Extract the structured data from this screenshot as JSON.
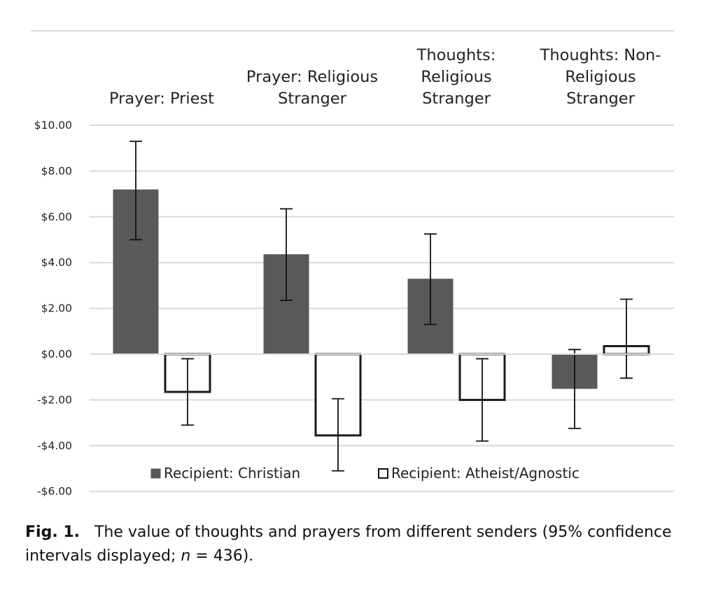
{
  "chart_data": {
    "type": "bar",
    "categories": [
      "Prayer: Priest",
      "Prayer: Religious Stranger",
      "Thoughts: Religious Stranger",
      "Thoughts: Non-Religious Stranger"
    ],
    "category_lines": [
      [
        "Prayer: Priest"
      ],
      [
        "Prayer: Religious",
        "Stranger"
      ],
      [
        "Thoughts:",
        "Religious",
        "Stranger"
      ],
      [
        "Thoughts: Non-",
        "Religious",
        "Stranger"
      ]
    ],
    "series": [
      {
        "name": "Recipient: Christian",
        "color": "#595959",
        "values": [
          7.18,
          4.35,
          3.28,
          -1.5
        ],
        "error_low": [
          5.0,
          2.35,
          1.3,
          -3.25
        ],
        "error_high": [
          9.3,
          6.35,
          5.25,
          0.2
        ]
      },
      {
        "name": "Recipient: Atheist/Agnostic",
        "color": "#ffffff",
        "values": [
          -1.65,
          -3.55,
          -2.0,
          0.35
        ],
        "error_low": [
          -3.1,
          -5.1,
          -3.8,
          -1.05
        ],
        "error_high": [
          -0.2,
          -1.95,
          -0.2,
          2.4
        ]
      }
    ],
    "ylim": [
      -6,
      10
    ],
    "yticks": [
      10,
      8,
      6,
      4,
      2,
      0,
      -2,
      -4,
      -6
    ],
    "ytick_labels": [
      "$10.00",
      "$8.00",
      "$6.00",
      "$4.00",
      "$2.00",
      "$0.00",
      "-$2.00",
      "-$4.00",
      "-$6.00"
    ],
    "grid": true,
    "legend_position": "bottom"
  },
  "caption": {
    "label": "Fig. 1.",
    "text": "The value of thoughts and prayers from different senders (95% confidence intervals displayed; ",
    "n_symbol": "n",
    "n_value": " = 436)."
  }
}
